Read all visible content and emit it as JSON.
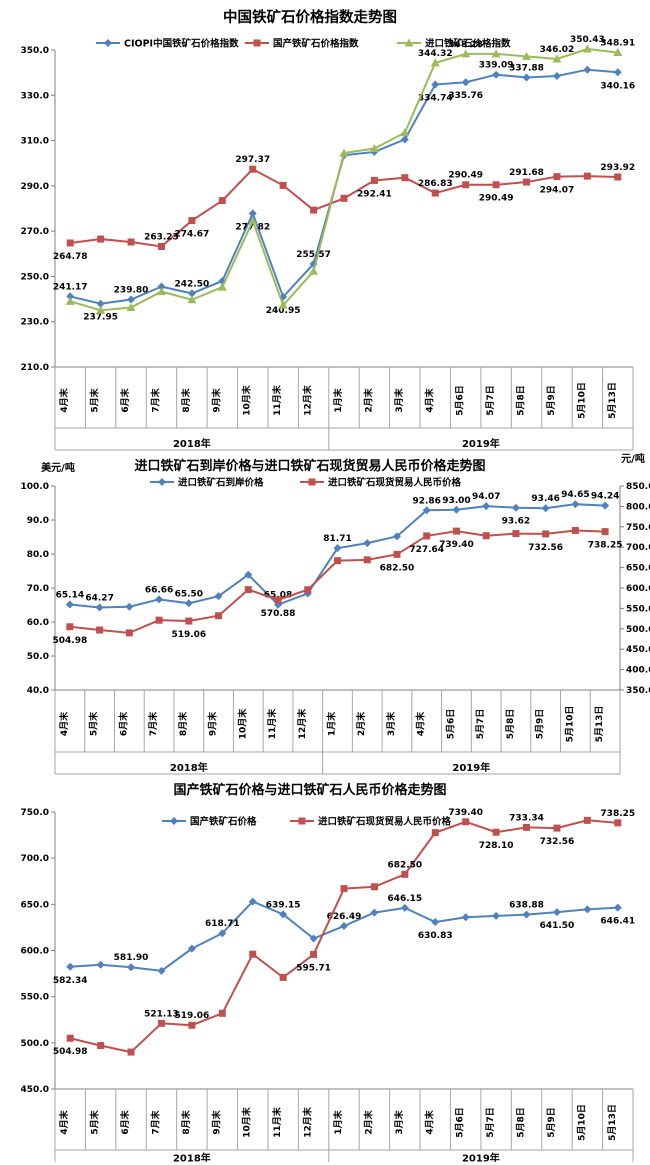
{
  "page": {
    "background": "#ffffff"
  },
  "chart_data": [
    {
      "type": "line",
      "title": "中国铁矿石价格指数走势图",
      "legend_position": "top",
      "grid": false,
      "categories": [
        "4月末",
        "5月末",
        "6月末",
        "7月末",
        "8月末",
        "9月末",
        "10月末",
        "11月末",
        "12月末",
        "1月末",
        "2月末",
        "3月末",
        "4月末",
        "5月6日",
        "5月7日",
        "5月8日",
        "5月9日",
        "5月10日",
        "5月13日"
      ],
      "year_groups": [
        {
          "label": "2018年",
          "count": 9
        },
        {
          "label": "2019年",
          "count": 10
        }
      ],
      "y_axis": {
        "min": 210,
        "max": 350,
        "ticks": [
          "350.0",
          "330.0",
          "310.0",
          "290.0",
          "270.0",
          "250.0",
          "230.0",
          "210.0"
        ]
      },
      "series": [
        {
          "name": "CIOPI中国铁矿石价格指数",
          "color": "#4F81BD",
          "marker": "diamond",
          "axis": "left",
          "values": [
            241.17,
            237.95,
            239.8,
            245.5,
            242.5,
            248.0,
            277.82,
            240.95,
            255.57,
            303.5,
            305.0,
            310.5,
            334.74,
            335.76,
            339.09,
            337.88,
            338.5,
            341.3,
            340.16
          ],
          "labels": [
            "241.17",
            "237.95",
            "239.80",
            null,
            "242.50",
            null,
            "277.82",
            "240.95",
            "255.57",
            null,
            null,
            null,
            "334.74",
            "335.76",
            "339.09",
            "337.88",
            null,
            null,
            "340.16"
          ],
          "label_side": [
            "a",
            "b",
            "a",
            null,
            "a",
            null,
            "b",
            "b",
            "a",
            null,
            null,
            null,
            "b",
            "b",
            "a",
            "a",
            null,
            null,
            "b"
          ]
        },
        {
          "name": "国产铁矿石价格指数",
          "color": "#C0504D",
          "marker": "square",
          "axis": "left",
          "values": [
            264.78,
            266.5,
            265.2,
            263.23,
            274.67,
            283.5,
            297.37,
            290.2,
            279.3,
            284.5,
            292.41,
            293.6,
            286.83,
            290.49,
            290.49,
            291.68,
            294.07,
            294.3,
            293.92
          ],
          "labels": [
            "264.78",
            null,
            null,
            "263.23",
            "274.67",
            null,
            "297.37",
            null,
            null,
            null,
            "292.41",
            null,
            "286.83",
            "290.49",
            "290.49",
            "291.68",
            "294.07",
            null,
            "293.92"
          ],
          "label_side": [
            "b",
            null,
            null,
            "a",
            "b",
            null,
            "a",
            null,
            null,
            null,
            "b",
            null,
            "a",
            "a",
            "b",
            "a",
            "b",
            null,
            "a"
          ]
        },
        {
          "name": "进口铁矿石价格指数",
          "color": "#9BBB59",
          "marker": "triangle",
          "axis": "left",
          "values": [
            239.0,
            235.0,
            236.3,
            243.3,
            239.7,
            245.3,
            274.5,
            237.3,
            252.3,
            304.5,
            306.5,
            313.5,
            344.32,
            348.28,
            348.3,
            347.2,
            346.02,
            350.43,
            348.91
          ],
          "labels": [
            null,
            null,
            null,
            null,
            null,
            null,
            null,
            null,
            null,
            null,
            null,
            null,
            "344.32",
            "348.28",
            null,
            null,
            "346.02",
            "350.43",
            "348.91"
          ],
          "label_side": [
            null,
            null,
            null,
            null,
            null,
            null,
            null,
            null,
            null,
            null,
            null,
            null,
            "a",
            "a",
            null,
            null,
            "a",
            "a",
            "a"
          ]
        }
      ]
    },
    {
      "type": "line",
      "title": "进口铁矿石到岸价格与进口铁矿石现货贸易人民币价格走势图",
      "legend_position": "top",
      "grid": false,
      "categories": [
        "4月末",
        "5月末",
        "6月末",
        "7月末",
        "8月末",
        "9月末",
        "10月末",
        "11月末",
        "12月末",
        "1月末",
        "2月末",
        "3月末",
        "4月末",
        "5月6日",
        "5月7日",
        "5月8日",
        "5月9日",
        "5月10日",
        "5月13日"
      ],
      "year_groups": [
        {
          "label": "2018年",
          "count": 9
        },
        {
          "label": "2019年",
          "count": 10
        }
      ],
      "y_left": {
        "unit": "美元/吨",
        "min": 40,
        "max": 100,
        "ticks": [
          "100.0",
          "90.0",
          "80.0",
          "70.0",
          "60.0",
          "50.0",
          "40.0"
        ]
      },
      "y_right": {
        "unit": "元/吨",
        "min": 350,
        "max": 850,
        "ticks": [
          "850.0",
          "800.0",
          "750.0",
          "700.0",
          "650.0",
          "600.0",
          "550.0",
          "500.0",
          "450.0",
          "400.0",
          "350.0"
        ]
      },
      "series": [
        {
          "name": "进口铁矿石到岸价格",
          "color": "#4F81BD",
          "marker": "diamond",
          "axis": "left",
          "values": [
            65.14,
            64.27,
            64.5,
            66.66,
            65.5,
            67.6,
            73.9,
            65.08,
            68.4,
            81.71,
            83.2,
            85.2,
            92.86,
            93.0,
            94.07,
            93.62,
            93.46,
            94.65,
            94.24
          ],
          "labels": [
            "65.14",
            "64.27",
            null,
            "66.66",
            "65.50",
            null,
            null,
            "65.08",
            null,
            "81.71",
            null,
            null,
            "92.86",
            "93.00",
            "94.07",
            "93.62",
            "93.46",
            "94.65",
            "94.24"
          ],
          "label_side": [
            "a",
            "a",
            null,
            "a",
            "a",
            null,
            null,
            "a",
            null,
            "a",
            null,
            null,
            "a",
            "a",
            "a",
            "b",
            "a",
            "a",
            "a"
          ]
        },
        {
          "name": "进口铁矿石现货贸易人民币价格",
          "color": "#C0504D",
          "marker": "square",
          "axis": "right",
          "values": [
            504.98,
            497.0,
            490.0,
            521.13,
            519.06,
            532.0,
            596.0,
            570.88,
            595.71,
            667.0,
            669.0,
            682.5,
            727.64,
            739.4,
            728.1,
            733.34,
            732.56,
            741.0,
            738.25
          ],
          "labels": [
            "504.98",
            null,
            null,
            null,
            "519.06",
            null,
            null,
            "570.88",
            null,
            null,
            null,
            "682.50",
            "727.64",
            "739.40",
            null,
            null,
            "732.56",
            null,
            "738.25"
          ],
          "label_side": [
            "b",
            null,
            null,
            null,
            "b",
            null,
            null,
            "b",
            null,
            null,
            null,
            "b",
            "b",
            "b",
            null,
            null,
            "b",
            null,
            "b"
          ]
        }
      ]
    },
    {
      "type": "line",
      "title": "国产铁矿石价格与进口铁矿石人民币价格走势图",
      "legend_position": "top",
      "grid": false,
      "categories": [
        "4月末",
        "5月末",
        "6月末",
        "7月末",
        "8月末",
        "9月末",
        "10月末",
        "11月末",
        "12月末",
        "1月末",
        "2月末",
        "3月末",
        "4月末",
        "5月6日",
        "5月7日",
        "5月8日",
        "5月9日",
        "5月10日",
        "5月13日"
      ],
      "year_groups": [
        {
          "label": "2018年",
          "count": 9
        },
        {
          "label": "2019年",
          "count": 10
        }
      ],
      "y_axis": {
        "min": 450,
        "max": 750,
        "ticks": [
          "750.0",
          "700.0",
          "650.0",
          "600.0",
          "550.0",
          "500.0",
          "450.0"
        ]
      },
      "series": [
        {
          "name": "国产铁矿石价格",
          "color": "#4F81BD",
          "marker": "diamond",
          "axis": "left",
          "values": [
            582.34,
            584.5,
            581.9,
            578.0,
            602.0,
            618.71,
            653.0,
            639.15,
            613.0,
            626.49,
            641.0,
            646.15,
            630.83,
            636.0,
            637.5,
            638.88,
            641.5,
            644.5,
            646.41
          ],
          "labels": [
            "582.34",
            null,
            "581.90",
            null,
            null,
            "618.71",
            null,
            "639.15",
            null,
            "626.49",
            null,
            "646.15",
            "630.83",
            null,
            null,
            "638.88",
            "641.50",
            null,
            "646.41"
          ],
          "label_side": [
            "b",
            null,
            "a",
            null,
            null,
            "a",
            null,
            "a",
            null,
            "a",
            null,
            "a",
            "b",
            null,
            null,
            "a",
            "b",
            null,
            "b"
          ]
        },
        {
          "name": "进口铁矿石现货贸易人民币价格",
          "color": "#C0504D",
          "marker": "square",
          "axis": "left",
          "values": [
            504.98,
            497.0,
            490.0,
            521.13,
            519.06,
            532.0,
            596.0,
            570.88,
            595.71,
            667.0,
            669.0,
            682.5,
            727.64,
            739.4,
            728.1,
            733.34,
            732.56,
            741.0,
            738.25
          ],
          "labels": [
            "504.98",
            null,
            null,
            "521.13",
            "519.06",
            null,
            null,
            null,
            "595.71",
            null,
            null,
            "682.50",
            null,
            "739.40",
            "728.10",
            "733.34",
            "732.56",
            null,
            "738.25"
          ],
          "label_side": [
            "b",
            null,
            null,
            "a",
            "a",
            null,
            null,
            null,
            "b",
            null,
            null,
            "a",
            null,
            "a",
            "b",
            "a",
            "b",
            null,
            "a"
          ]
        }
      ]
    }
  ]
}
